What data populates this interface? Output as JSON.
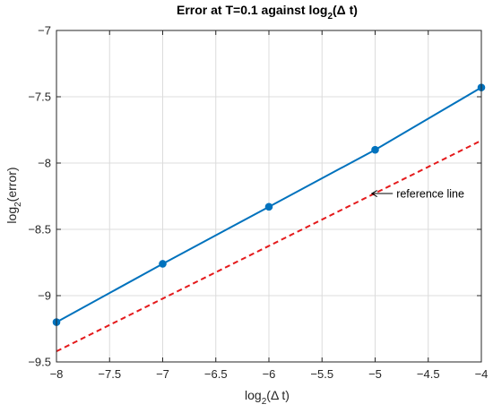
{
  "chart_data": {
    "type": "line",
    "title_main": "Error at T=0.1 against log",
    "title_sub": "2",
    "title_tail": "(Δ t)",
    "xlabel_main": "log",
    "xlabel_sub": "2",
    "xlabel_tail": "(Δ t)",
    "ylabel_main": "log",
    "ylabel_sub": "2",
    "ylabel_tail": "(error)",
    "xlim": [
      -8,
      -4
    ],
    "ylim": [
      -9.5,
      -7
    ],
    "xticks": [
      -8,
      -7.5,
      -7,
      -6.5,
      -6,
      -5.5,
      -5,
      -4.5,
      -4
    ],
    "yticks": [
      -9.5,
      -9,
      -8.5,
      -8,
      -7.5,
      -7
    ],
    "xtick_labels": [
      "−8",
      "−7.5",
      "−7",
      "−6.5",
      "−6",
      "−5.5",
      "−5",
      "−4.5",
      "−4"
    ],
    "ytick_labels": [
      "−9.5",
      "−9",
      "−8.5",
      "−8",
      "−7.5",
      "−7"
    ],
    "grid": true,
    "series": [
      {
        "style": "solid-with-markers",
        "color": "#0072bd",
        "x": [
          -8,
          -7,
          -6,
          -5,
          -4
        ],
        "y": [
          -9.2,
          -8.76,
          -8.33,
          -7.9,
          -7.43
        ]
      },
      {
        "style": "dashed",
        "color": "#e41a1c",
        "x": [
          -8,
          -4
        ],
        "y": [
          -9.42,
          -7.83
        ]
      }
    ],
    "annotations": [
      {
        "text": "reference line",
        "arrow_to": [
          -5.04,
          -8.23
        ],
        "text_at": [
          -4.8,
          -8.23
        ]
      }
    ]
  }
}
